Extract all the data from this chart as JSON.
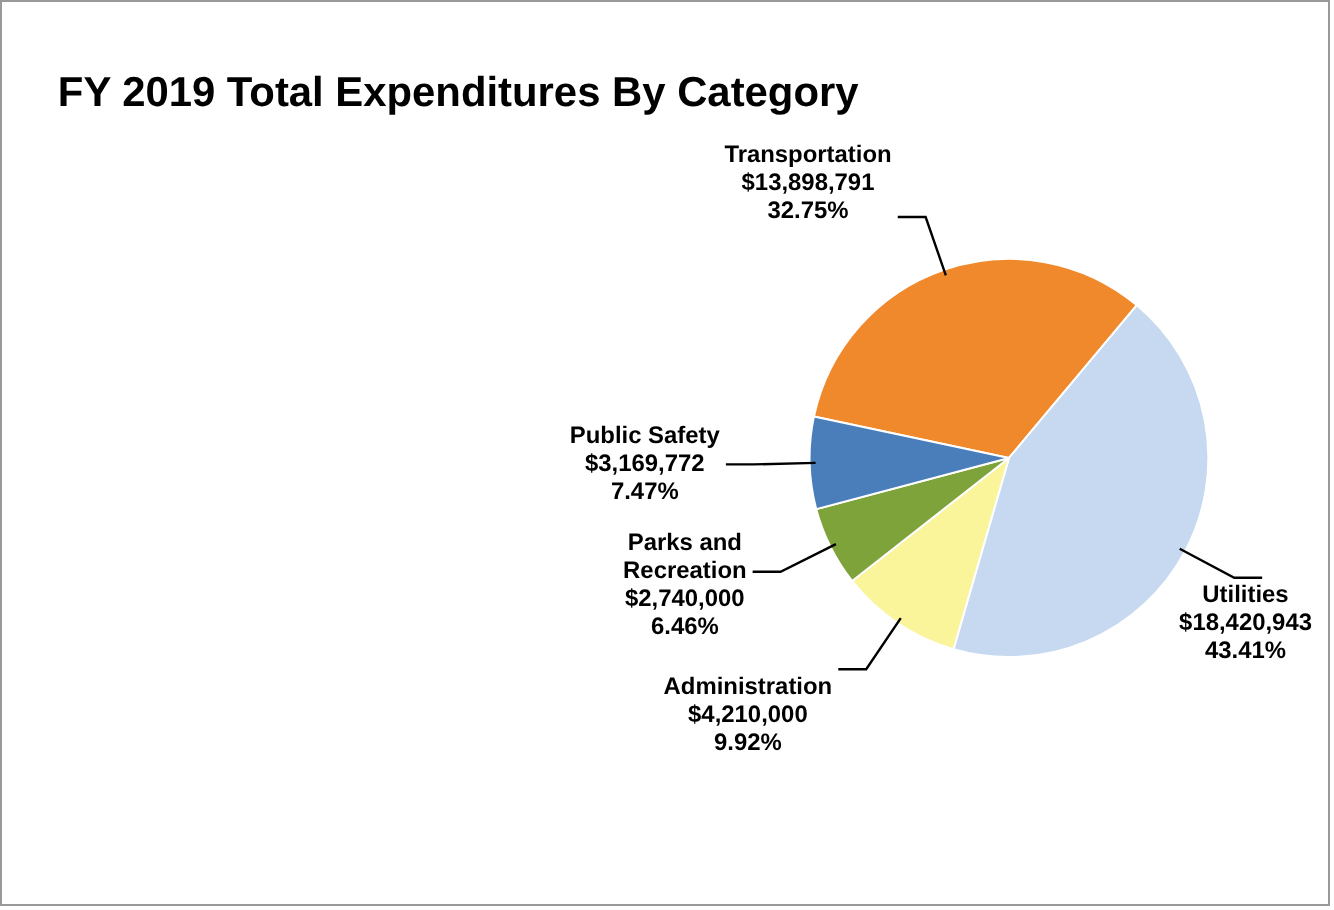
{
  "chart_data": {
    "type": "pie",
    "title": "FY 2019 Total Expenditures By Category",
    "categories": [
      "Transportation",
      "Utilities",
      "Administration",
      "Parks and Recreation",
      "Public Safety"
    ],
    "values": [
      13898791,
      18420943,
      4210000,
      2740000,
      3169772
    ],
    "colors": [
      "#f0892b",
      "#c6d9f1",
      "#faf49b",
      "#7fa33b",
      "#4a7ebb"
    ],
    "value_labels": [
      "$13,898,791\n32.75%",
      "$18,420,943\n43.41%",
      "$4,210,000\n9.92%",
      "$2,740,000\n6.46%",
      "$3,169,772\n7.47%"
    ],
    "legend": false
  }
}
